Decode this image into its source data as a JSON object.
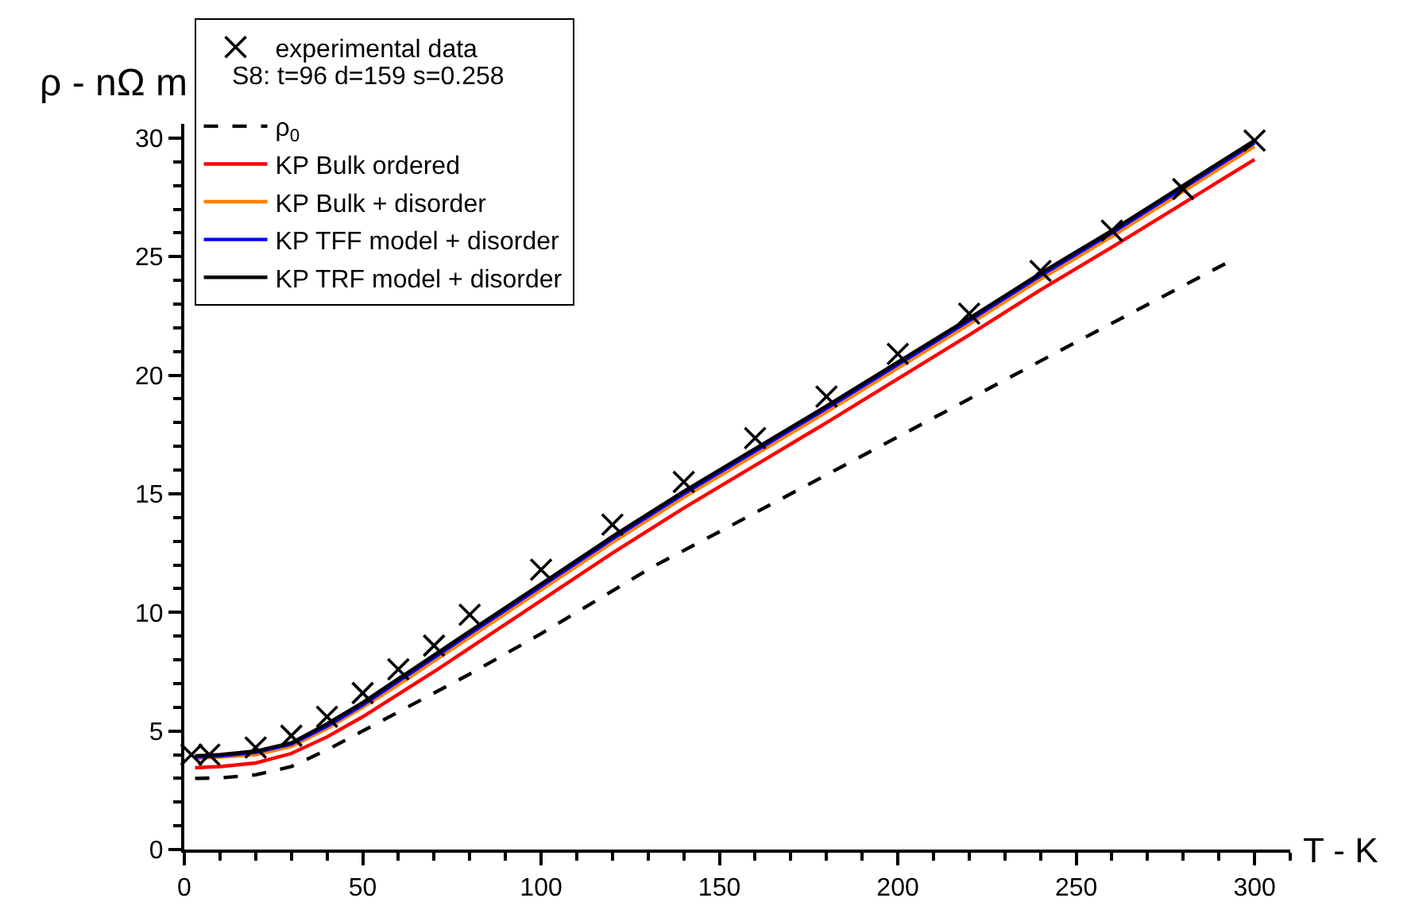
{
  "chart_data": {
    "type": "line",
    "xlabel": "T - K",
    "ylabel": "ρ - nΩ m",
    "annotations": [
      "S8: t=96 d=159 s=0.258"
    ],
    "xlim": [
      0,
      310
    ],
    "ylim": [
      0,
      30.6
    ],
    "xticks": [
      0,
      {
        "value": 10,
        "label": null
      },
      {
        "value": 20,
        "label": null
      },
      {
        "value": 30,
        "label": null
      },
      {
        "value": 40,
        "label": null
      },
      50,
      {
        "value": 60,
        "label": null
      },
      {
        "value": 70,
        "label": null
      },
      {
        "value": 80,
        "label": null
      },
      {
        "value": 90,
        "label": null
      },
      100,
      {
        "value": 110,
        "label": null
      },
      {
        "value": 120,
        "label": null
      },
      {
        "value": 130,
        "label": null
      },
      {
        "value": 140,
        "label": null
      },
      150,
      {
        "value": 160,
        "label": null
      },
      {
        "value": 170,
        "label": null
      },
      {
        "value": 180,
        "label": null
      },
      {
        "value": 190,
        "label": null
      },
      200,
      {
        "value": 210,
        "label": null
      },
      {
        "value": 220,
        "label": null
      },
      {
        "value": 230,
        "label": null
      },
      {
        "value": 240,
        "label": null
      },
      250,
      {
        "value": 260,
        "label": null
      },
      {
        "value": 270,
        "label": null
      },
      {
        "value": 280,
        "label": null
      },
      {
        "value": 290,
        "label": null
      },
      300,
      {
        "value": 310,
        "label": null
      }
    ],
    "yticks": [
      0,
      {
        "value": 1,
        "label": null
      },
      {
        "value": 2,
        "label": null
      },
      {
        "value": 3,
        "label": null
      },
      {
        "value": 4,
        "label": null
      },
      5,
      {
        "value": 6,
        "label": null
      },
      {
        "value": 7,
        "label": null
      },
      {
        "value": 8,
        "label": null
      },
      {
        "value": 9,
        "label": null
      },
      10,
      {
        "value": 11,
        "label": null
      },
      {
        "value": 12,
        "label": null
      },
      {
        "value": 13,
        "label": null
      },
      {
        "value": 14,
        "label": null
      },
      15,
      {
        "value": 16,
        "label": null
      },
      {
        "value": 17,
        "label": null
      },
      {
        "value": 18,
        "label": null
      },
      {
        "value": 19,
        "label": null
      },
      20,
      {
        "value": 21,
        "label": null
      },
      {
        "value": 22,
        "label": null
      },
      {
        "value": 23,
        "label": null
      },
      {
        "value": 24,
        "label": null
      },
      25,
      {
        "value": 26,
        "label": null
      },
      {
        "value": 27,
        "label": null
      },
      {
        "value": 28,
        "label": null
      },
      {
        "value": 29,
        "label": null
      },
      30
    ],
    "legend": "top left",
    "series": [
      {
        "name": "experimental data",
        "type": "scatter",
        "marker": "cross",
        "color": "#000000",
        "x": [
          2,
          7,
          20,
          30,
          40,
          50,
          60,
          70,
          80,
          100,
          120,
          140,
          160,
          180,
          200,
          220,
          240,
          260,
          280,
          300
        ],
        "values": [
          4.0,
          4.0,
          4.3,
          4.8,
          5.6,
          6.6,
          7.6,
          8.6,
          9.9,
          11.8,
          13.7,
          15.5,
          17.35,
          19.1,
          20.9,
          22.6,
          24.4,
          26.1,
          27.85,
          29.9
        ]
      },
      {
        "name": "ρ$_{0}$",
        "line_style": "dashed",
        "color": "#000000",
        "x": [
          3,
          10,
          20,
          30,
          40,
          50,
          60,
          80,
          100,
          131,
          150,
          200,
          250,
          293
        ],
        "values": [
          3.0,
          3.02,
          3.15,
          3.5,
          4.2,
          5.0,
          5.8,
          7.4,
          9.1,
          11.9,
          13.4,
          17.4,
          21.4,
          24.8
        ]
      },
      {
        "name": "KP Bulk ordered",
        "line_style": "solid",
        "color": "#ff0000",
        "x": [
          3,
          10,
          20,
          30,
          40,
          50,
          60,
          70,
          80,
          100,
          120,
          140,
          160,
          180,
          200,
          220,
          240,
          260,
          280,
          300
        ],
        "values": [
          3.45,
          3.5,
          3.65,
          4.05,
          4.75,
          5.6,
          6.55,
          7.5,
          8.5,
          10.5,
          12.5,
          14.4,
          16.2,
          18.0,
          19.85,
          21.7,
          23.6,
          25.4,
          27.25,
          29.1
        ]
      },
      {
        "name": "KP Bulk + disorder",
        "line_style": "solid",
        "color": "#ff8000",
        "x": [
          3,
          10,
          20,
          30,
          40,
          50,
          60,
          70,
          80,
          100,
          120,
          140,
          160,
          180,
          200,
          220,
          240,
          260,
          280,
          300
        ],
        "values": [
          3.85,
          3.9,
          4.0,
          4.35,
          5.1,
          6.0,
          6.95,
          7.95,
          8.95,
          10.95,
          12.95,
          14.85,
          16.65,
          18.45,
          20.3,
          22.15,
          24.05,
          25.85,
          27.75,
          29.65
        ]
      },
      {
        "name": "KP TFF model + disorder",
        "line_style": "solid",
        "color": "#0000ff",
        "x": [
          3,
          10,
          20,
          30,
          40,
          50,
          60,
          70,
          80,
          100,
          120,
          140,
          160,
          180,
          200,
          220,
          240,
          260,
          280,
          300
        ],
        "values": [
          3.9,
          3.95,
          4.1,
          4.45,
          5.2,
          6.1,
          7.1,
          8.1,
          9.1,
          11.1,
          13.1,
          15.0,
          16.8,
          18.6,
          20.45,
          22.3,
          24.2,
          26.0,
          27.9,
          29.8
        ]
      },
      {
        "name": "KP TRF model + disorder",
        "line_style": "solid",
        "color": "#000000",
        "x": [
          3,
          10,
          20,
          30,
          40,
          50,
          60,
          70,
          80,
          100,
          120,
          140,
          160,
          180,
          200,
          220,
          240,
          260,
          280,
          300
        ],
        "values": [
          3.95,
          4.0,
          4.15,
          4.5,
          5.3,
          6.2,
          7.2,
          8.2,
          9.2,
          11.2,
          13.2,
          15.1,
          16.9,
          18.7,
          20.55,
          22.4,
          24.3,
          26.1,
          28.0,
          29.9
        ]
      }
    ]
  }
}
